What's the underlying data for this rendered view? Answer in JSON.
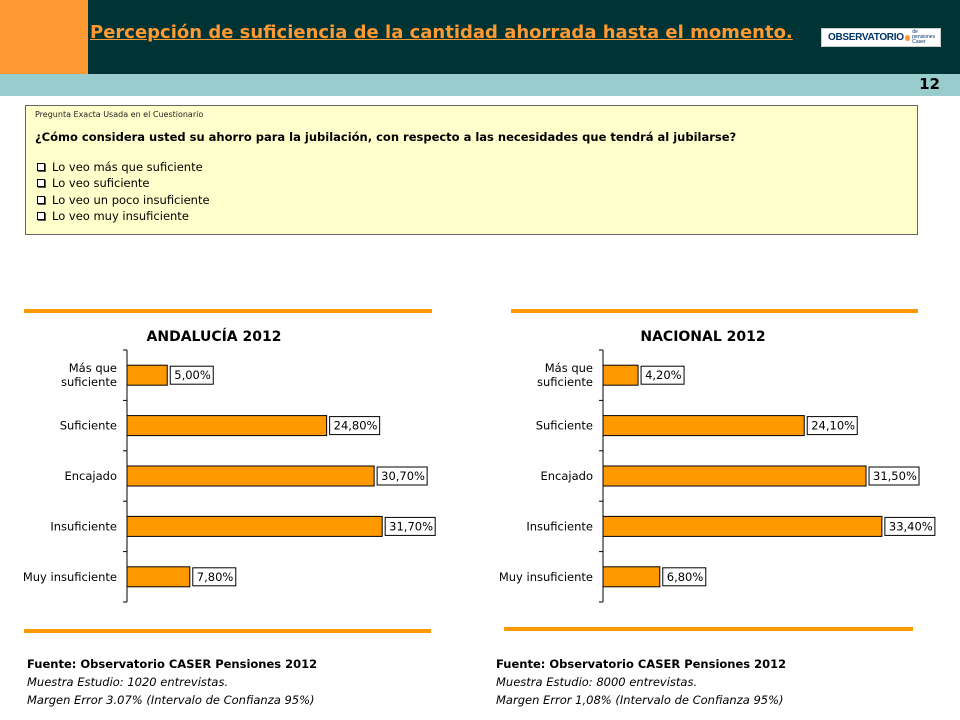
{
  "header": {
    "title": "Percepción de suficiencia de la cantidad ahorrada hasta el momento.",
    "logo_text": "OBSERVATORIO",
    "logo_sub_1": "de pensiones",
    "logo_sub_2": "Caser",
    "page_number": "12"
  },
  "question": {
    "label": "Pregunta Exacta Usada en el Cuestionario",
    "text": "¿Cómo considera usted su ahorro para la jubilación, con respecto a las necesidades que tendrá al jubilarse?",
    "options": [
      "Lo veo más que suficiente",
      "Lo veo suficiente",
      "Lo veo un poco insuficiente",
      "Lo veo muy insuficiente"
    ]
  },
  "chart_data": [
    {
      "type": "bar",
      "orientation": "horizontal",
      "title": "ANDALUCÍA 2012",
      "categories": [
        [
          "Más que",
          "suficiente"
        ],
        [
          "Suficiente"
        ],
        [
          "Encajado"
        ],
        [
          "Insuficiente"
        ],
        [
          "Muy insuficiente"
        ]
      ],
      "values": [
        5.0,
        24.8,
        30.7,
        31.7,
        7.8
      ],
      "value_labels": [
        "5,00%",
        "24,80%",
        "30,70%",
        "31,70%",
        "7,80%"
      ],
      "xlim": [
        0,
        40
      ],
      "bar_color": "#ff9900"
    },
    {
      "type": "bar",
      "orientation": "horizontal",
      "title": "NACIONAL 2012",
      "categories": [
        [
          "Más que",
          "suficiente"
        ],
        [
          "Suficiente"
        ],
        [
          "Encajado"
        ],
        [
          "Insuficiente"
        ],
        [
          "Muy insuficiente"
        ]
      ],
      "values": [
        4.2,
        24.1,
        31.5,
        33.4,
        6.8
      ],
      "value_labels": [
        "4,20%",
        "24,10%",
        "31,50%",
        "33,40%",
        "6,80%"
      ],
      "xlim": [
        0,
        40
      ],
      "bar_color": "#ff9900"
    }
  ],
  "sources": [
    {
      "fuente": "Fuente: Observatorio CASER Pensiones 2012",
      "muestra": "Muestra Estudio: 1020 entrevistas.",
      "margen": "Margen Error 3.07% (Intervalo de Confianza 95%)"
    },
    {
      "fuente": "Fuente: Observatorio CASER Pensiones 2012",
      "muestra": "Muestra Estudio: 8000 entrevistas.",
      "margen": "Margen Error 1,08% (Intervalo de Confianza 95%)"
    }
  ],
  "colors": {
    "accent_orange": "#ff9933",
    "header_dark": "#003333",
    "teal_band": "#99cccc",
    "question_bg": "#ffffcc"
  }
}
